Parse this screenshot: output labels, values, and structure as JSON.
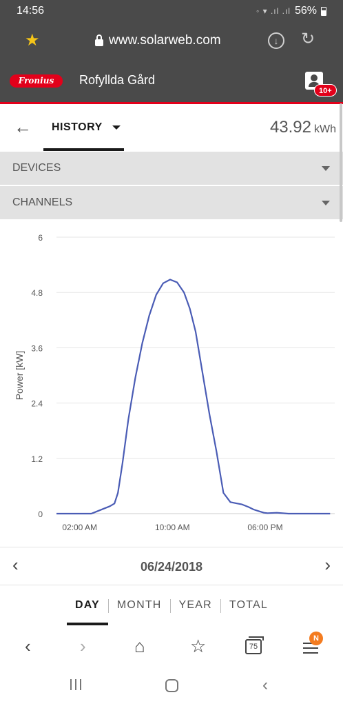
{
  "status_bar": {
    "time": "14:56",
    "signal": " ⚯ . ıl .ıl",
    "battery": "56%"
  },
  "browser": {
    "url": "www.solarweb.com"
  },
  "app_header": {
    "logo_text": "Fronius",
    "site_name": "Rofyllda Gård",
    "notification_count": "10+"
  },
  "history_bar": {
    "tab_label": "HISTORY",
    "energy_value": "43.92",
    "energy_unit": "kWh"
  },
  "dropdowns": {
    "devices": "DEVICES",
    "channels": "CHANNELS"
  },
  "chart_data": {
    "type": "line",
    "ylabel": "Power [kW]",
    "ylim": [
      0,
      6
    ],
    "yticks": [
      "6",
      "4.8",
      "3.6",
      "2.4",
      "1.2",
      "0"
    ],
    "xlim": [
      0,
      24
    ],
    "xticks": [
      {
        "hour": 2,
        "label": "02:00 AM"
      },
      {
        "hour": 10,
        "label": "10:00 AM"
      },
      {
        "hour": 18,
        "label": "06:00 PM"
      }
    ],
    "grid": true,
    "line_color": "#4a5cb5",
    "series": [
      {
        "x": [
          0,
          1,
          2,
          3,
          3.2,
          4,
          4.6,
          5,
          5.3,
          5.7,
          6.2,
          6.8,
          7.4,
          8,
          8.6,
          9.2,
          9.8,
          10.4,
          11,
          11.5,
          12,
          12.6,
          13.2,
          13.8,
          14.4,
          15,
          15.6,
          16,
          16.3,
          16.6,
          17,
          17.5,
          17.9,
          18.2,
          19,
          20,
          21,
          21.8,
          22.5,
          23,
          23.6
        ],
        "y": [
          0,
          0,
          0,
          0.0,
          0.02,
          0.1,
          0.16,
          0.22,
          0.45,
          1.1,
          2.05,
          2.95,
          3.7,
          4.3,
          4.75,
          5.0,
          5.08,
          5.02,
          4.8,
          4.45,
          3.95,
          3.05,
          2.15,
          1.35,
          0.45,
          0.25,
          0.22,
          0.2,
          0.17,
          0.14,
          0.09,
          0.05,
          0.02,
          0.01,
          0.02,
          0.0,
          0,
          0,
          0,
          0,
          0
        ]
      }
    ]
  },
  "date_bar": {
    "date": "06/24/2018"
  },
  "period_tabs": [
    "DAY",
    "MONTH",
    "YEAR",
    "TOTAL"
  ],
  "browser_nav": {
    "tab_count": "75",
    "menu_badge": "N"
  }
}
